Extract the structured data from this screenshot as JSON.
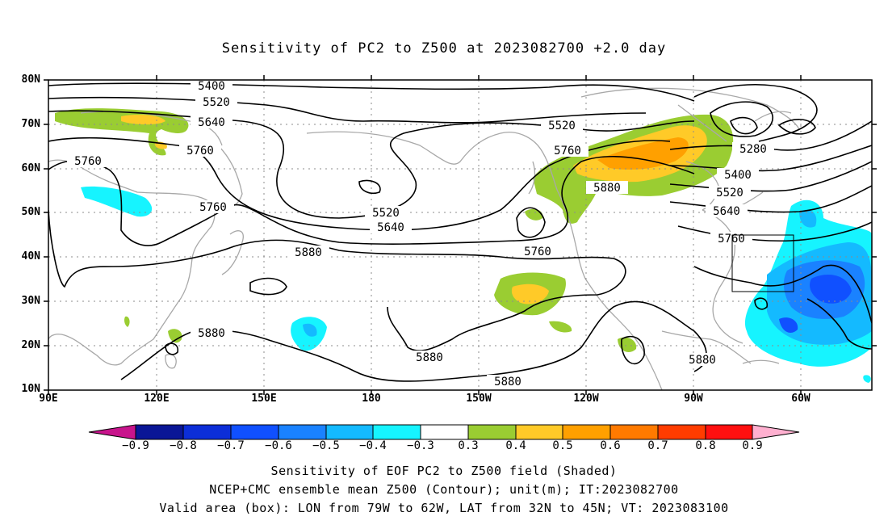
{
  "title": "Sensitivity of PC2 to Z500 at 2023082700 +2.0 day",
  "map": {
    "lat_ticks": [
      "80N",
      "70N",
      "60N",
      "50N",
      "40N",
      "30N",
      "20N",
      "10N"
    ],
    "lon_ticks": [
      "90E",
      "120E",
      "150E",
      "180",
      "150W",
      "120W",
      "90W",
      "60W"
    ],
    "contour_labels": [
      "5400",
      "5520",
      "5640",
      "5760",
      "5880",
      "5280"
    ],
    "valid_box": {
      "lon_from": "79W",
      "lon_to": "62W",
      "lat_from": "32N",
      "lat_to": "45N"
    }
  },
  "colorbar": {
    "labels": [
      "−0.9",
      "−0.8",
      "−0.7",
      "−0.6",
      "−0.5",
      "−0.4",
      "−0.3",
      "0.3",
      "0.4",
      "0.5",
      "0.6",
      "0.7",
      "0.8",
      "0.9"
    ],
    "colors": [
      "#0a1696",
      "#0c2ed8",
      "#1050ff",
      "#1a82ff",
      "#14baff",
      "#16f4ff",
      "#ffffff",
      "#9acd32",
      "#ffca28",
      "#ffa000",
      "#ff7a00",
      "#ff3c00",
      "#ff1010"
    ],
    "low_end": "#c8148c",
    "high_end": "#ffb0d0"
  },
  "captions": {
    "line1": "Sensitivity of EOF PC2 to Z500 field (Shaded)",
    "line2": "NCEP+CMC ensemble mean Z500 (Contour); unit(m); IT:2023082700",
    "line3": "Valid area (box): LON from 79W to 62W, LAT from 32N to 45N; VT: 2023083100"
  }
}
